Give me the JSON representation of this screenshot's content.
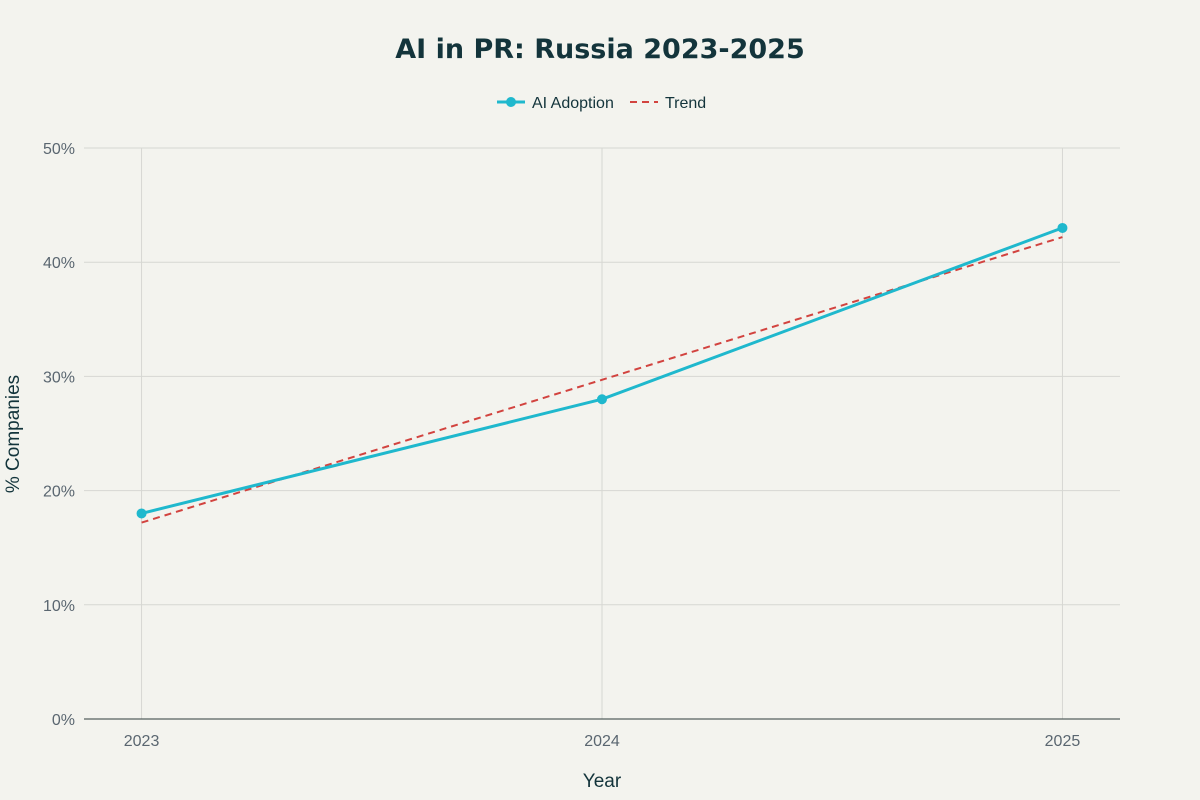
{
  "chart_data": {
    "type": "line",
    "title": "AI in PR: Russia 2023-2025",
    "xlabel": "Year",
    "ylabel": "% Companies",
    "categories": [
      "2023",
      "2024",
      "2025"
    ],
    "x": [
      2023,
      2024,
      2025
    ],
    "xlim": [
      2022.875,
      2025.125
    ],
    "ylim": [
      0,
      50
    ],
    "y_ticks": [
      0,
      10,
      20,
      30,
      40,
      50
    ],
    "y_tick_labels": [
      "0%",
      "10%",
      "20%",
      "30%",
      "40%",
      "50%"
    ],
    "grid": true,
    "legend_position": "top-center",
    "series": [
      {
        "name": "AI Adoption",
        "values": [
          18,
          28,
          43
        ],
        "color": "#1fb8cd",
        "style": "solid",
        "markers": true
      },
      {
        "name": "Trend",
        "values": [
          17.2,
          29.7,
          42.2
        ],
        "color": "#d2433f",
        "style": "dashed",
        "markers": false
      }
    ]
  }
}
